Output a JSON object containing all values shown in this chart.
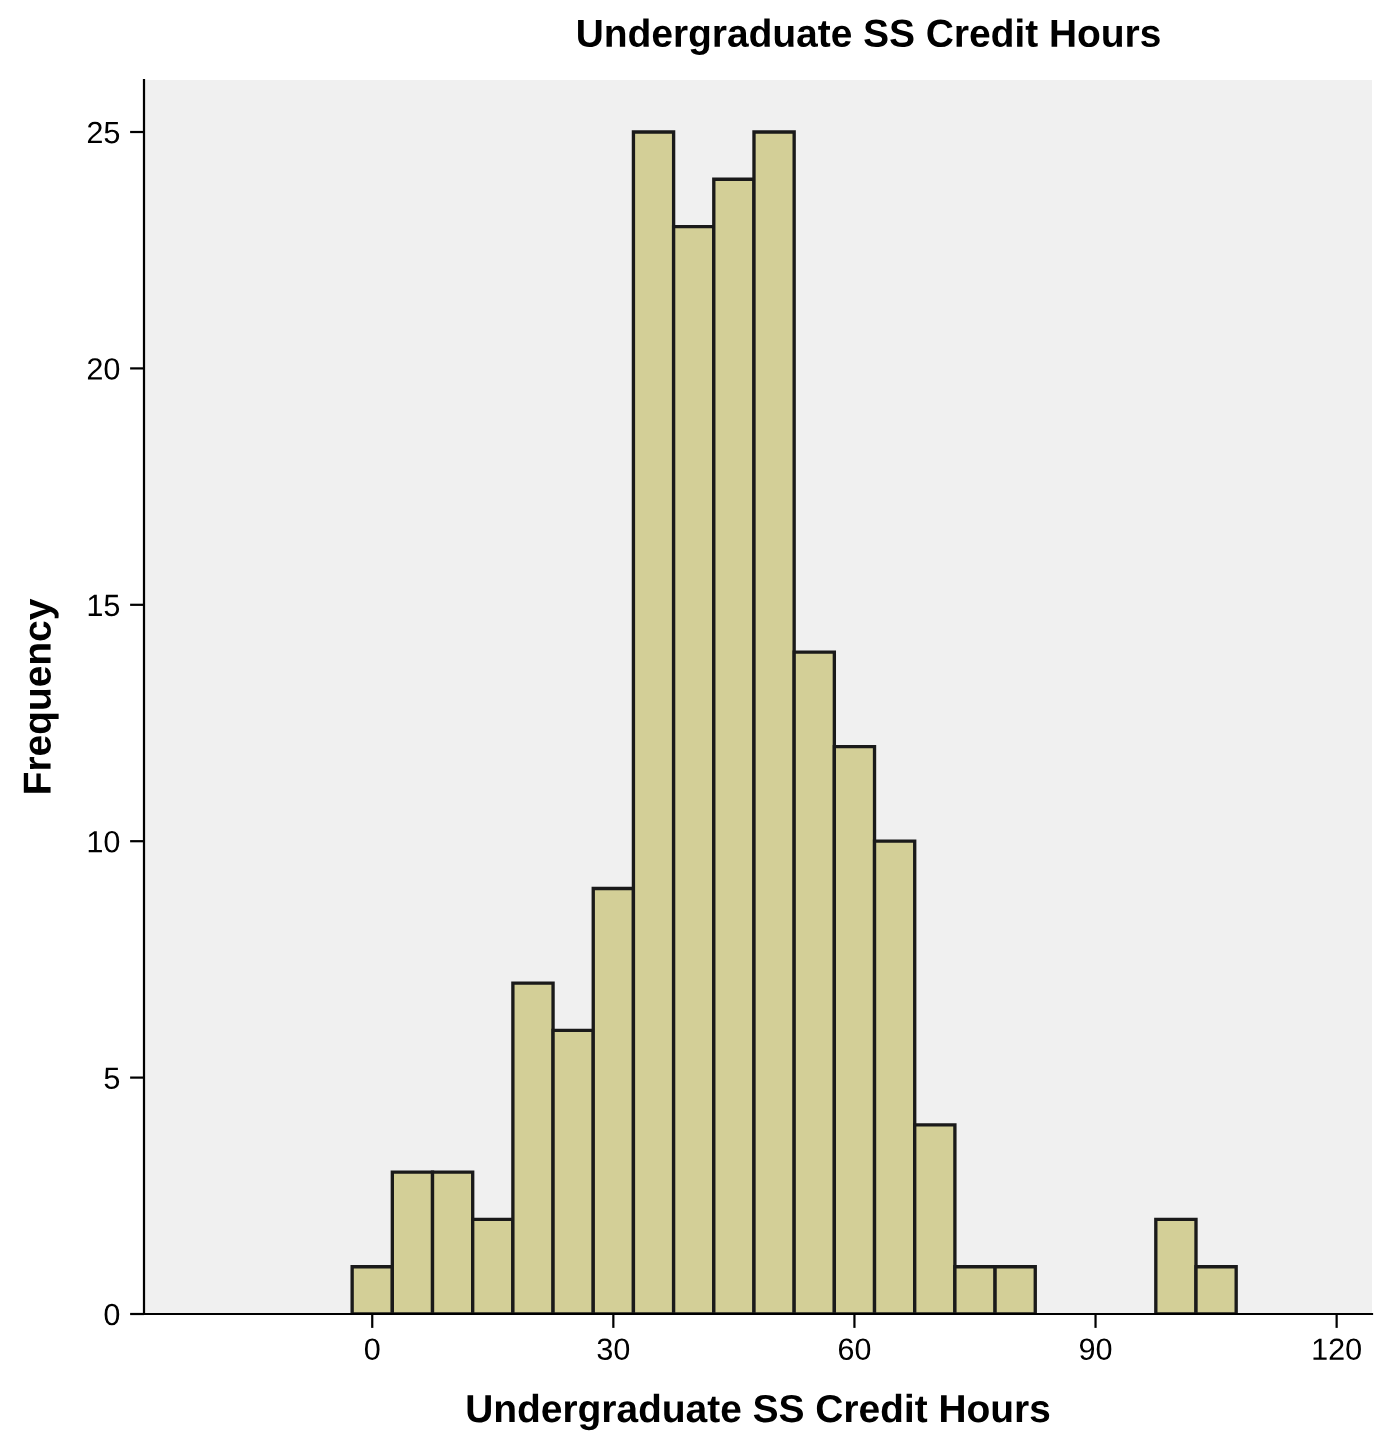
{
  "chart_data": {
    "type": "histogram",
    "title": "Undergraduate SS Credit Hours",
    "xlabel": "Undergraduate SS Credit Hours",
    "ylabel": "Frequency",
    "bins": [
      -2.5,
      2.5,
      7.5,
      12.5,
      17.5,
      22.5,
      27.5,
      32.5,
      37.5,
      42.5,
      47.5,
      52.5,
      57.5,
      62.5,
      67.5,
      72.5,
      77.5,
      82.5,
      87.5,
      92.5,
      97.5,
      102.5,
      107.5
    ],
    "values": [
      1,
      3,
      3,
      2,
      7,
      6,
      9,
      25,
      23,
      24,
      25,
      14,
      12,
      10,
      4,
      1,
      1,
      0,
      0,
      0,
      2,
      1
    ],
    "color": "#d3cf97",
    "xlim": [
      -28.4,
      124.4
    ],
    "ylim": [
      0,
      26.1
    ],
    "xticks": [
      0,
      30,
      60,
      90,
      120
    ],
    "yticks": [
      0,
      5,
      10,
      15,
      20,
      25
    ],
    "grid": false
  }
}
